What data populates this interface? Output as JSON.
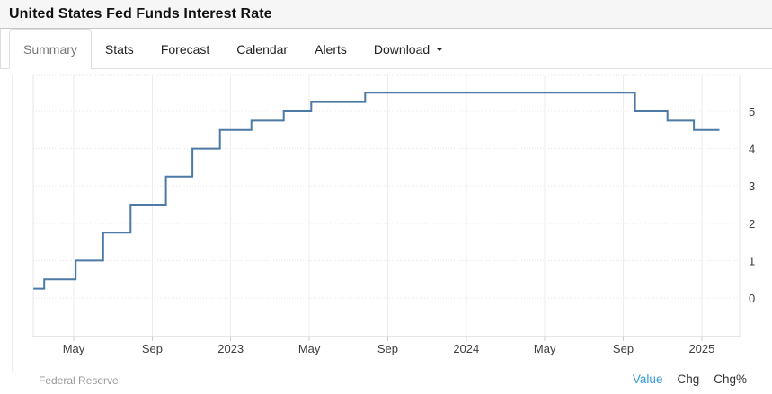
{
  "header": {
    "title": "United States Fed Funds Interest Rate"
  },
  "tabs": {
    "items": [
      {
        "label": "Summary",
        "active": true
      },
      {
        "label": "Stats",
        "active": false
      },
      {
        "label": "Forecast",
        "active": false
      },
      {
        "label": "Calendar",
        "active": false
      },
      {
        "label": "Alerts",
        "active": false
      },
      {
        "label": "Download",
        "active": false,
        "has_caret": true
      }
    ]
  },
  "footer": {
    "source": "Federal Reserve",
    "columns": {
      "value": "Value",
      "chg": "Chg",
      "chgpct": "Chg%"
    },
    "value_color": "#3598db",
    "source_color": "#9a9a9a"
  },
  "chart_data": {
    "type": "line",
    "step": true,
    "title": "",
    "xlabel": "",
    "ylabel": "",
    "unit": "percent",
    "grid": true,
    "y_axis_side": "right",
    "ylim": [
      -1,
      6
    ],
    "y_ticks": [
      0,
      1,
      2,
      3,
      4,
      5
    ],
    "x_ticks": [
      {
        "m": 4,
        "label": "May"
      },
      {
        "m": 8,
        "label": "Sep"
      },
      {
        "m": 12,
        "label": "2023"
      },
      {
        "m": 16,
        "label": "May"
      },
      {
        "m": 20,
        "label": "Sep"
      },
      {
        "m": 24,
        "label": "2024"
      },
      {
        "m": 28,
        "label": "May"
      },
      {
        "m": 32,
        "label": "Sep"
      },
      {
        "m": 36,
        "label": "2025"
      }
    ],
    "x_unit": "months since Jan 2022",
    "line_color": "#4d79a7",
    "series": [
      {
        "name": "United States Fed Funds Interest Rate",
        "points": [
          {
            "date": "Feb 2022",
            "m": 1.95,
            "value": 0.25
          },
          {
            "date": "Mar 2022",
            "m": 2.5,
            "value": 0.5
          },
          {
            "date": "May 2022",
            "m": 4.1,
            "value": 1.0
          },
          {
            "date": "Jun 2022",
            "m": 5.5,
            "value": 1.75
          },
          {
            "date": "Jul 2022",
            "m": 6.9,
            "value": 2.5
          },
          {
            "date": "Sep 2022",
            "m": 8.7,
            "value": 3.25
          },
          {
            "date": "Nov 2022",
            "m": 10.05,
            "value": 4.0
          },
          {
            "date": "Dec 2022",
            "m": 11.45,
            "value": 4.5
          },
          {
            "date": "Feb 2023",
            "m": 13.05,
            "value": 4.75
          },
          {
            "date": "Mar 2023",
            "m": 14.7,
            "value": 5.0
          },
          {
            "date": "May 2023",
            "m": 16.1,
            "value": 5.25
          },
          {
            "date": "Jul 2023",
            "m": 18.85,
            "value": 5.5
          },
          {
            "date": "Sep 2024",
            "m": 32.6,
            "value": 5.0
          },
          {
            "date": "Nov 2024",
            "m": 34.25,
            "value": 4.75
          },
          {
            "date": "Dec 2024",
            "m": 35.6,
            "value": 4.5
          }
        ],
        "end": {
          "date": "Feb 2025",
          "m": 36.9,
          "value": 4.5
        }
      }
    ]
  }
}
